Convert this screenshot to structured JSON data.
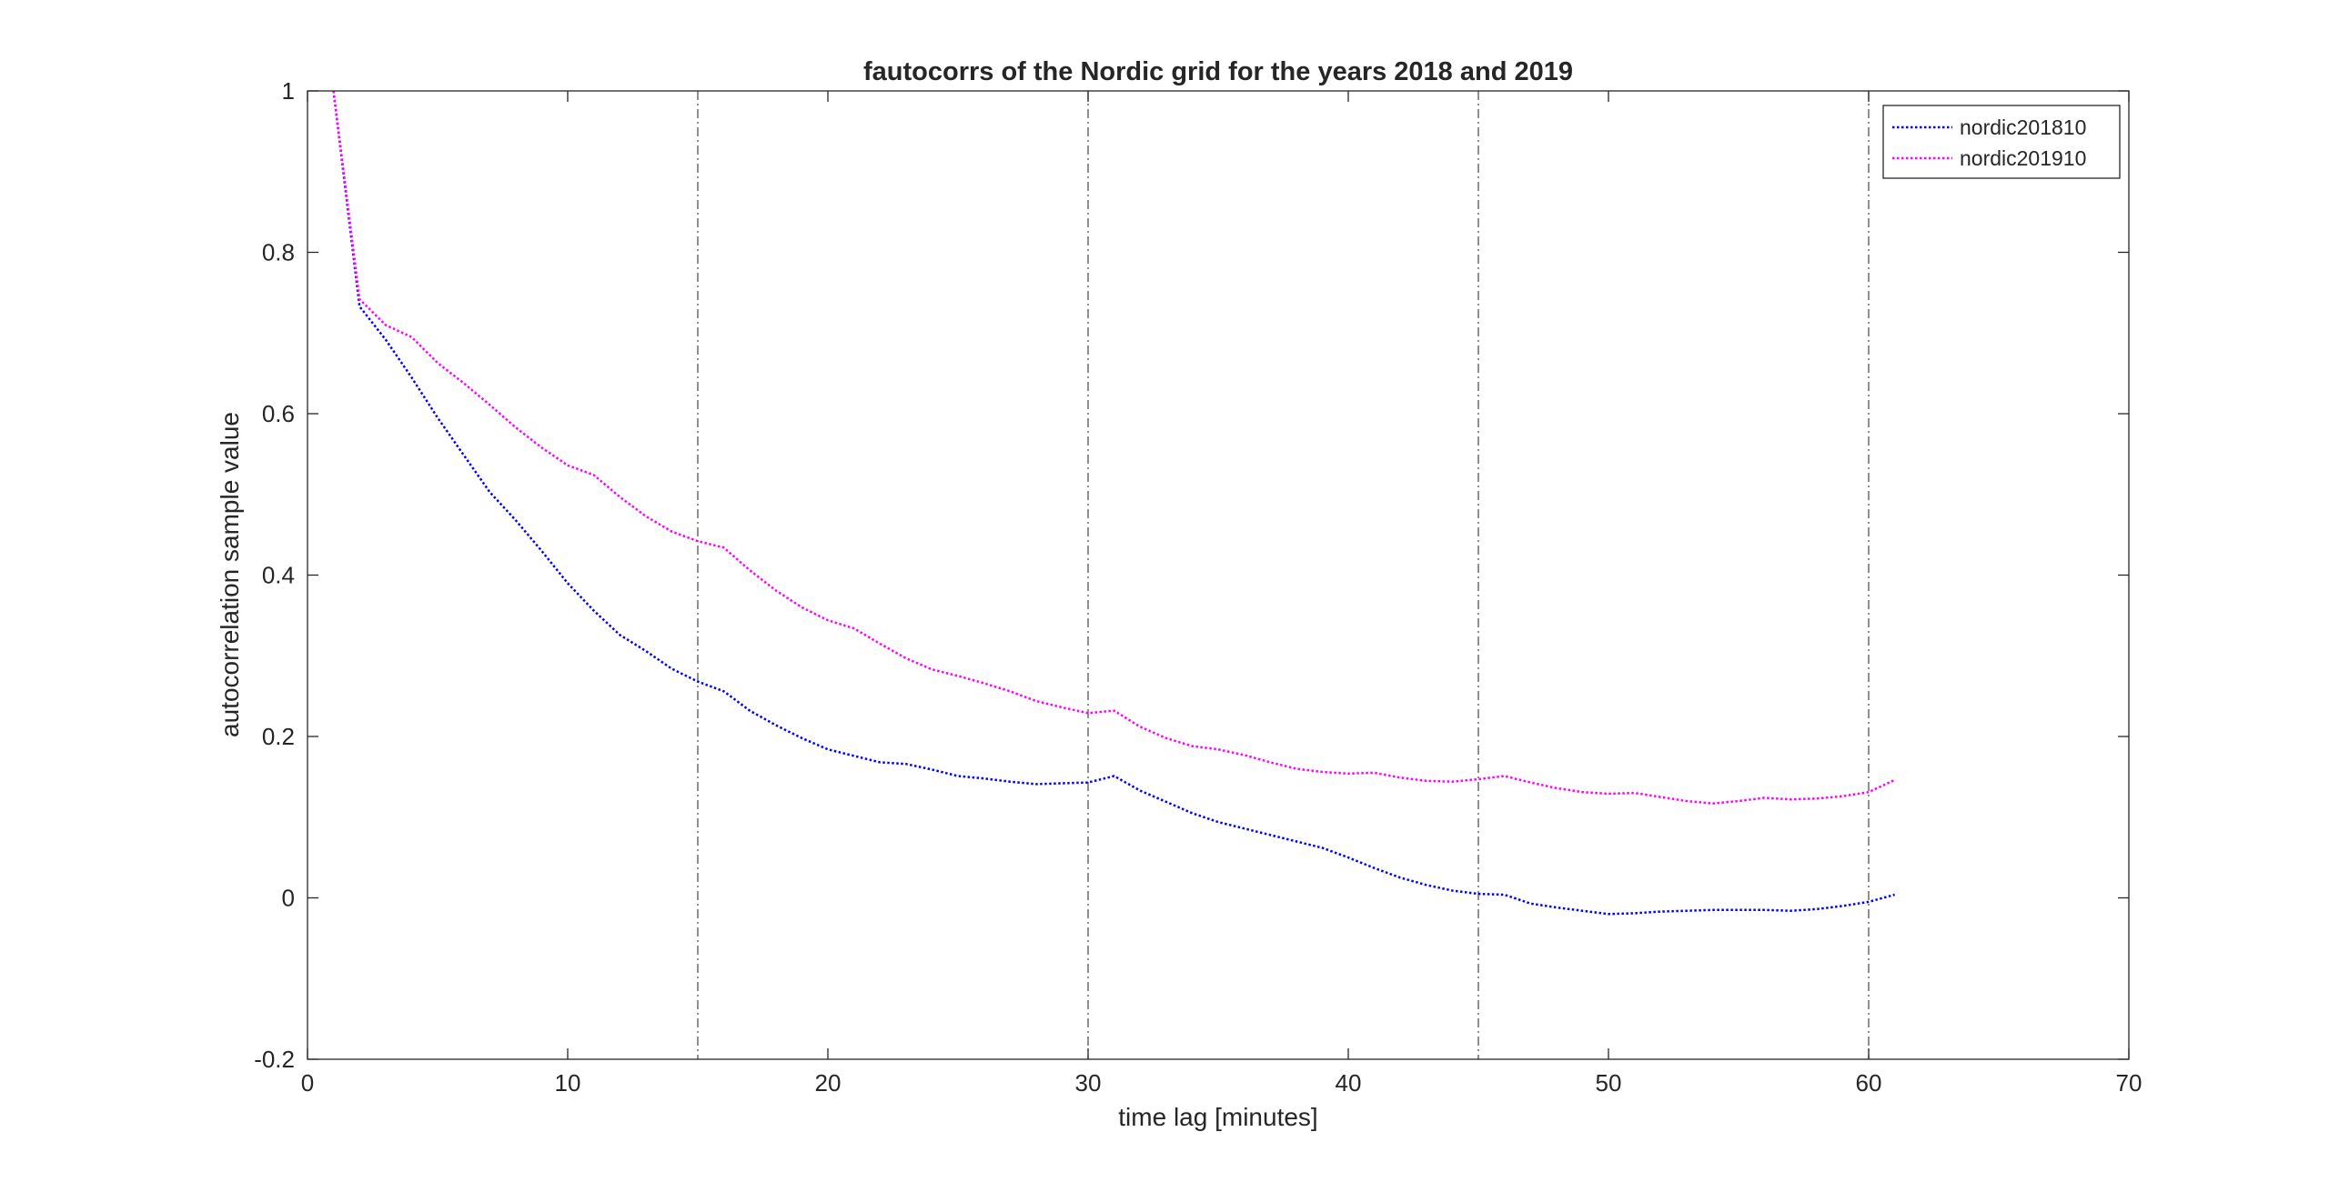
{
  "chart_data": {
    "type": "line",
    "title": "fautocorrs of the Nordic grid for the years 2018 and 2019",
    "xlabel": "time lag [minutes]",
    "ylabel": "autocorrelation sample value",
    "xlim": [
      0,
      70
    ],
    "ylim": [
      -0.2,
      1
    ],
    "xticks": [
      0,
      10,
      20,
      30,
      40,
      50,
      60,
      70
    ],
    "yticks": [
      -0.2,
      0,
      0.2,
      0.4,
      0.6,
      0.8,
      1
    ],
    "xtick_labels": [
      "0",
      "10",
      "20",
      "30",
      "40",
      "50",
      "60",
      "70"
    ],
    "ytick_labels": [
      "-0.2",
      "0",
      "0.2",
      "0.4",
      "0.6",
      "0.8",
      "1"
    ],
    "grid": false,
    "legend_position": "top-right",
    "reference_lines": {
      "x": [
        15,
        30,
        45,
        60
      ],
      "style": "dash-dot",
      "color": "#555555"
    },
    "series": [
      {
        "name": "nordic201810",
        "color": "#0000ff",
        "line_style": "dotted",
        "x": [
          1,
          2,
          3,
          4,
          5,
          6,
          7,
          8,
          9,
          10,
          11,
          12,
          13,
          14,
          15,
          16,
          17,
          18,
          19,
          20,
          21,
          22,
          23,
          24,
          25,
          26,
          27,
          28,
          29,
          30,
          31,
          32,
          33,
          34,
          35,
          36,
          37,
          38,
          39,
          40,
          41,
          42,
          43,
          44,
          45,
          46,
          47,
          48,
          49,
          50,
          51,
          52,
          53,
          54,
          55,
          56,
          57,
          58,
          59,
          60,
          61
        ],
        "values": [
          1.0,
          0.733,
          0.692,
          0.645,
          0.595,
          0.549,
          0.503,
          0.468,
          0.43,
          0.39,
          0.356,
          0.326,
          0.306,
          0.284,
          0.268,
          0.256,
          0.232,
          0.214,
          0.198,
          0.184,
          0.176,
          0.168,
          0.166,
          0.159,
          0.151,
          0.148,
          0.144,
          0.141,
          0.142,
          0.143,
          0.151,
          0.133,
          0.119,
          0.105,
          0.094,
          0.086,
          0.078,
          0.07,
          0.062,
          0.05,
          0.037,
          0.025,
          0.016,
          0.009,
          0.005,
          0.004,
          -0.007,
          -0.012,
          -0.016,
          -0.02,
          -0.019,
          -0.017,
          -0.016,
          -0.015,
          -0.015,
          -0.015,
          -0.016,
          -0.014,
          -0.01,
          -0.005,
          0.004
        ]
      },
      {
        "name": "nordic201910",
        "color": "#ff00ff",
        "line_style": "dotted",
        "x": [
          1,
          2,
          3,
          4,
          5,
          6,
          7,
          8,
          9,
          10,
          11,
          12,
          13,
          14,
          15,
          16,
          17,
          18,
          19,
          20,
          21,
          22,
          23,
          24,
          25,
          26,
          27,
          28,
          29,
          30,
          31,
          32,
          33,
          34,
          35,
          36,
          37,
          38,
          39,
          40,
          41,
          42,
          43,
          44,
          45,
          46,
          47,
          48,
          49,
          50,
          51,
          52,
          53,
          54,
          55,
          56,
          57,
          58,
          59,
          60,
          61
        ],
        "values": [
          1.0,
          0.742,
          0.71,
          0.695,
          0.663,
          0.638,
          0.611,
          0.583,
          0.558,
          0.536,
          0.524,
          0.497,
          0.473,
          0.454,
          0.442,
          0.434,
          0.406,
          0.381,
          0.36,
          0.344,
          0.334,
          0.315,
          0.297,
          0.283,
          0.275,
          0.266,
          0.256,
          0.244,
          0.236,
          0.229,
          0.232,
          0.212,
          0.198,
          0.188,
          0.184,
          0.177,
          0.168,
          0.16,
          0.156,
          0.154,
          0.155,
          0.149,
          0.145,
          0.144,
          0.147,
          0.151,
          0.143,
          0.136,
          0.131,
          0.129,
          0.13,
          0.125,
          0.12,
          0.117,
          0.12,
          0.124,
          0.122,
          0.123,
          0.126,
          0.131,
          0.146
        ]
      }
    ]
  }
}
